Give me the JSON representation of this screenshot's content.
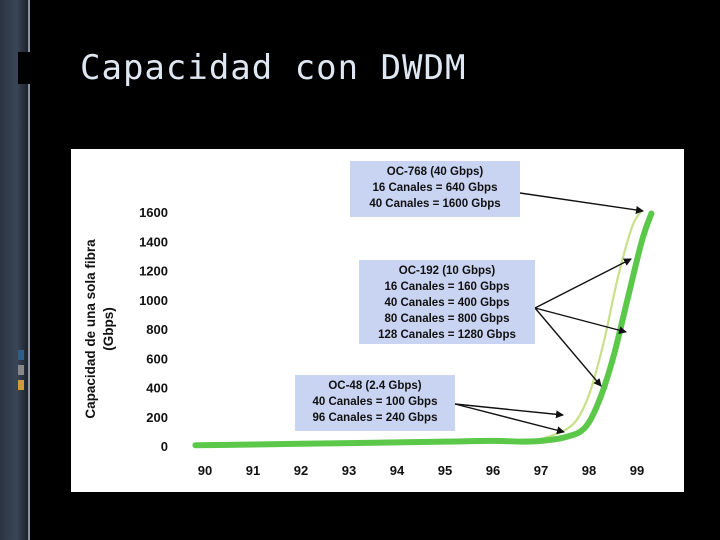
{
  "slide": {
    "title": "Capacidad con DWDM"
  },
  "chart_data": {
    "type": "line",
    "ylabel": [
      "Capacidad de una sola fibra",
      "(Gbps)"
    ],
    "x_ticks": [
      "90",
      "91",
      "92",
      "93",
      "94",
      "95",
      "96",
      "97",
      "98",
      "99"
    ],
    "y_ticks": [
      "0",
      "200",
      "400",
      "600",
      "800",
      "1000",
      "1200",
      "1400",
      "1600"
    ],
    "ylim": [
      0,
      1600
    ],
    "xlim": [
      90,
      99
    ],
    "grid": false,
    "series": [
      {
        "color": "#5cc84a",
        "x": [
          89.8,
          91,
          92,
          93,
          94,
          95,
          96,
          96.6,
          97,
          97.5,
          97.9,
          98.2,
          98.5,
          98.8,
          99.1,
          99.3
        ],
        "y": [
          5,
          10,
          15,
          20,
          25,
          30,
          35,
          30,
          35,
          60,
          120,
          300,
          600,
          1000,
          1400,
          1590
        ]
      },
      {
        "color": "#c8e08a",
        "x": [
          96.9,
          97.3,
          97.7,
          98.0,
          98.3,
          98.6,
          98.9,
          99.1
        ],
        "y": [
          40,
          80,
          160,
          350,
          700,
          1150,
          1500,
          1610
        ]
      }
    ],
    "annotations": [
      {
        "lines": [
          "OC-768 (40 Gbps)",
          "16 Canales = 640 Gbps",
          "40 Canales = 1600 Gbps"
        ]
      },
      {
        "lines": [
          "OC-192 (10 Gbps)",
          "16 Canales = 160 Gbps",
          "40 Canales = 400 Gbps",
          "80 Canales = 800 Gbps",
          "128 Canales = 1280 Gbps"
        ]
      },
      {
        "lines": [
          "OC-48 (2.4 Gbps)",
          "40 Canales = 100 Gbps",
          "96 Canales = 240 Gbps"
        ]
      }
    ]
  },
  "theme": {
    "marker_colors": [
      "#2e5f8a",
      "#888888",
      "#d39a3a"
    ]
  }
}
